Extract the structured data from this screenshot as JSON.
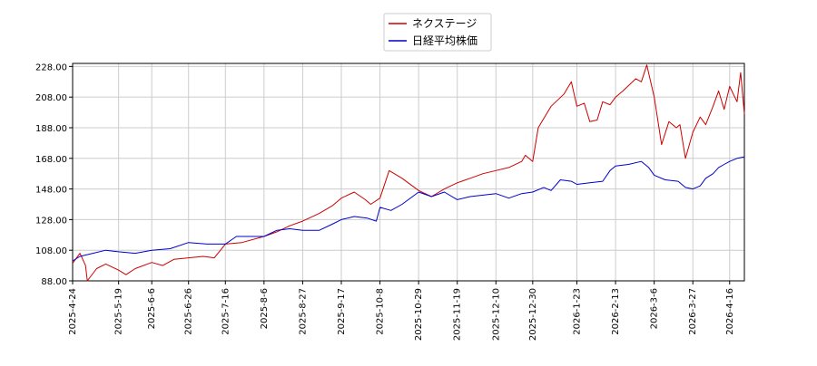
{
  "chart_data": {
    "type": "line",
    "title": "",
    "xlabel": "",
    "ylabel": "",
    "ylim": [
      88,
      230
    ],
    "y_ticks": [
      "88.00",
      "108.00",
      "128.00",
      "148.00",
      "168.00",
      "188.00",
      "208.00",
      "228.00"
    ],
    "x_range": [
      "2025-4-24",
      "2026-4-24"
    ],
    "x_ticks": [
      "2025-4-24",
      "2025-5-19",
      "2025-6-6",
      "2025-6-26",
      "2025-7-16",
      "2025-8-6",
      "2025-8-27",
      "2025-9-17",
      "2025-10-8",
      "2025-10-29",
      "2025-11-19",
      "2025-12-10",
      "2025-12-30",
      "2026-1-23",
      "2026-2-13",
      "2026-3-6",
      "2026-3-27",
      "2026-4-16"
    ],
    "grid": true,
    "legend_position": "top-center",
    "series": [
      {
        "name": "ネクステージ",
        "color": "#cc0000",
        "points": [
          [
            "2025-4-24",
            99.5
          ],
          [
            "2025-4-28",
            106
          ],
          [
            "2025-5-1",
            98
          ],
          [
            "2025-5-2",
            88
          ],
          [
            "2025-5-7",
            96
          ],
          [
            "2025-5-12",
            99
          ],
          [
            "2025-5-19",
            95
          ],
          [
            "2025-5-23",
            92
          ],
          [
            "2025-5-28",
            96
          ],
          [
            "2025-6-6",
            100
          ],
          [
            "2025-6-12",
            98
          ],
          [
            "2025-6-18",
            102
          ],
          [
            "2025-6-26",
            103
          ],
          [
            "2025-7-4",
            104
          ],
          [
            "2025-7-10",
            103
          ],
          [
            "2025-7-16",
            112
          ],
          [
            "2025-7-25",
            113
          ],
          [
            "2025-8-6",
            117
          ],
          [
            "2025-8-13",
            120
          ],
          [
            "2025-8-20",
            124
          ],
          [
            "2025-8-27",
            127
          ],
          [
            "2025-9-5",
            132
          ],
          [
            "2025-9-12",
            137
          ],
          [
            "2025-9-17",
            142
          ],
          [
            "2025-9-24",
            146
          ],
          [
            "2025-9-30",
            141
          ],
          [
            "2025-10-3",
            138
          ],
          [
            "2025-10-8",
            142
          ],
          [
            "2025-10-13",
            160
          ],
          [
            "2025-10-20",
            155
          ],
          [
            "2025-10-29",
            147
          ],
          [
            "2025-11-5",
            143
          ],
          [
            "2025-11-12",
            148
          ],
          [
            "2025-11-19",
            152
          ],
          [
            "2025-11-26",
            155
          ],
          [
            "2025-12-3",
            158
          ],
          [
            "2025-12-10",
            160
          ],
          [
            "2025-12-17",
            162
          ],
          [
            "2025-12-24",
            166
          ],
          [
            "2025-12-26",
            170
          ],
          [
            "2025-12-30",
            166
          ],
          [
            "2026-1-2",
            188
          ],
          [
            "2026-1-9",
            202
          ],
          [
            "2026-1-16",
            210
          ],
          [
            "2026-1-20",
            218
          ],
          [
            "2026-1-23",
            202
          ],
          [
            "2026-1-27",
            204
          ],
          [
            "2026-1-30",
            192
          ],
          [
            "2026-2-3",
            193
          ],
          [
            "2026-2-6",
            205
          ],
          [
            "2026-2-10",
            203
          ],
          [
            "2026-2-13",
            208
          ],
          [
            "2026-2-17",
            212
          ],
          [
            "2026-2-24",
            220
          ],
          [
            "2026-2-27",
            218
          ],
          [
            "2026-3-2",
            229
          ],
          [
            "2026-3-6",
            208
          ],
          [
            "2026-3-10",
            177
          ],
          [
            "2026-3-14",
            192
          ],
          [
            "2026-3-18",
            188
          ],
          [
            "2026-3-20",
            190
          ],
          [
            "2026-3-23",
            168
          ],
          [
            "2026-3-27",
            185
          ],
          [
            "2026-3-31",
            195
          ],
          [
            "2026-4-3",
            190
          ],
          [
            "2026-4-7",
            202
          ],
          [
            "2026-4-10",
            212
          ],
          [
            "2026-4-13",
            200
          ],
          [
            "2026-4-16",
            215
          ],
          [
            "2026-4-20",
            205
          ],
          [
            "2026-4-22",
            224
          ],
          [
            "2026-4-24",
            197
          ]
        ]
      },
      {
        "name": "日経平均株価",
        "color": "#0000cc",
        "points": [
          [
            "2025-4-24",
            101
          ],
          [
            "2025-4-28",
            104
          ],
          [
            "2025-5-5",
            106
          ],
          [
            "2025-5-12",
            108
          ],
          [
            "2025-5-19",
            107
          ],
          [
            "2025-5-28",
            106
          ],
          [
            "2025-6-6",
            108
          ],
          [
            "2025-6-16",
            109
          ],
          [
            "2025-6-26",
            113
          ],
          [
            "2025-7-6",
            112
          ],
          [
            "2025-7-16",
            112
          ],
          [
            "2025-7-22",
            117
          ],
          [
            "2025-8-6",
            117
          ],
          [
            "2025-8-13",
            121
          ],
          [
            "2025-8-20",
            122
          ],
          [
            "2025-8-27",
            121
          ],
          [
            "2025-9-5",
            121
          ],
          [
            "2025-9-12",
            125
          ],
          [
            "2025-9-17",
            128
          ],
          [
            "2025-9-24",
            130
          ],
          [
            "2025-10-1",
            129
          ],
          [
            "2025-10-6",
            127
          ],
          [
            "2025-10-8",
            136
          ],
          [
            "2025-10-14",
            134
          ],
          [
            "2025-10-20",
            138
          ],
          [
            "2025-10-29",
            146
          ],
          [
            "2025-11-5",
            143
          ],
          [
            "2025-11-12",
            146
          ],
          [
            "2025-11-19",
            141
          ],
          [
            "2025-11-26",
            143
          ],
          [
            "2025-12-3",
            144
          ],
          [
            "2025-12-10",
            145
          ],
          [
            "2025-12-17",
            142
          ],
          [
            "2025-12-24",
            145
          ],
          [
            "2025-12-30",
            146
          ],
          [
            "2026-1-5",
            149
          ],
          [
            "2026-1-9",
            147
          ],
          [
            "2026-1-14",
            154
          ],
          [
            "2026-1-20",
            153
          ],
          [
            "2026-1-23",
            151
          ],
          [
            "2026-1-30",
            152
          ],
          [
            "2026-2-6",
            153
          ],
          [
            "2026-2-10",
            160
          ],
          [
            "2026-2-13",
            163
          ],
          [
            "2026-2-20",
            164
          ],
          [
            "2026-2-27",
            166
          ],
          [
            "2026-3-3",
            162
          ],
          [
            "2026-3-6",
            157
          ],
          [
            "2026-3-12",
            154
          ],
          [
            "2026-3-19",
            153
          ],
          [
            "2026-3-23",
            149
          ],
          [
            "2026-3-27",
            148
          ],
          [
            "2026-3-31",
            150
          ],
          [
            "2026-4-3",
            155
          ],
          [
            "2026-4-7",
            158
          ],
          [
            "2026-4-10",
            162
          ],
          [
            "2026-4-13",
            164
          ],
          [
            "2026-4-16",
            166
          ],
          [
            "2026-4-20",
            168
          ],
          [
            "2026-4-24",
            169
          ]
        ]
      }
    ]
  }
}
